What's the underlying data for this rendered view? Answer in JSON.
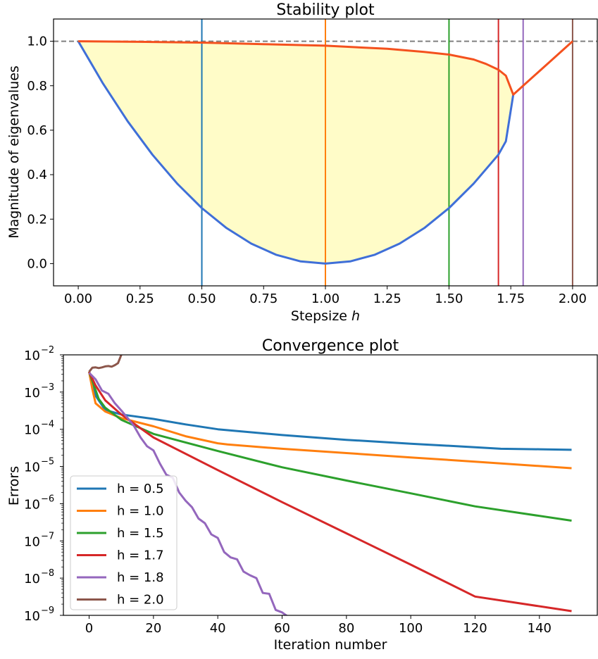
{
  "chart_data": [
    {
      "type": "line",
      "title": "Stability plot",
      "xlabel": "Stepsize",
      "xlabel_var": "h",
      "ylabel": "Magnitude of eigenvalues",
      "xlim": [
        -0.1,
        2.1
      ],
      "ylim": [
        -0.1,
        1.1
      ],
      "xticks": [
        0.0,
        0.25,
        0.5,
        0.75,
        1.0,
        1.25,
        1.5,
        1.75,
        2.0
      ],
      "xtick_labels": [
        "0.00",
        "0.25",
        "0.50",
        "0.75",
        "1.00",
        "1.25",
        "1.50",
        "1.75",
        "2.00"
      ],
      "yticks": [
        0.0,
        0.2,
        0.4,
        0.6,
        0.8,
        1.0
      ],
      "ytick_labels": [
        "0.0",
        "0.2",
        "0.4",
        "0.6",
        "0.8",
        "1.0"
      ],
      "reference_line": {
        "y": 1.0,
        "style": "dashed",
        "color": "#808080"
      },
      "fill_color": "#fffcc8",
      "series": [
        {
          "color": "#f4511e",
          "x": [
            0.0,
            0.25,
            0.5,
            0.75,
            1.0,
            1.25,
            1.4,
            1.5,
            1.6,
            1.65,
            1.7,
            1.73,
            1.76,
            1.8,
            1.9,
            2.0
          ],
          "y": [
            1.0,
            0.9975,
            0.994,
            0.987,
            0.98,
            0.966,
            0.952,
            0.94,
            0.918,
            0.898,
            0.872,
            0.845,
            0.76,
            0.8,
            0.9,
            1.0
          ]
        },
        {
          "color": "#3f6fd8",
          "x": [
            0.0,
            0.1,
            0.2,
            0.3,
            0.4,
            0.5,
            0.6,
            0.7,
            0.8,
            0.9,
            1.0,
            1.1,
            1.2,
            1.3,
            1.4,
            1.5,
            1.6,
            1.7,
            1.73,
            1.76
          ],
          "y": [
            1.0,
            0.81,
            0.64,
            0.49,
            0.36,
            0.25,
            0.16,
            0.09,
            0.04,
            0.01,
            0.0,
            0.01,
            0.04,
            0.09,
            0.16,
            0.25,
            0.36,
            0.49,
            0.55,
            0.76
          ]
        }
      ],
      "vlines": [
        {
          "x": 0.5,
          "color": "#1f77b4"
        },
        {
          "x": 1.0,
          "color": "#ff7f0e"
        },
        {
          "x": 1.5,
          "color": "#2ca02c"
        },
        {
          "x": 1.7,
          "color": "#d62728"
        },
        {
          "x": 1.8,
          "color": "#9467bd"
        },
        {
          "x": 2.0,
          "color": "#8c564b"
        }
      ]
    },
    {
      "type": "line",
      "title": "Convergence plot",
      "xlabel": "Iteration number",
      "ylabel": "Errors",
      "yscale": "log",
      "xlim": [
        -8,
        158
      ],
      "ylim_log10": [
        -9,
        -2
      ],
      "xticks": [
        0,
        20,
        40,
        60,
        80,
        100,
        120,
        140
      ],
      "xtick_labels": [
        "0",
        "20",
        "40",
        "60",
        "80",
        "100",
        "120",
        "140"
      ],
      "yticks_log10": [
        -9,
        -8,
        -7,
        -6,
        -5,
        -4,
        -3,
        -2
      ],
      "ytick_base": "10",
      "ytick_exponents": [
        "−9",
        "−8",
        "−7",
        "−6",
        "−5",
        "−4",
        "−3",
        "−2"
      ],
      "legend_position": "lower-left",
      "series": [
        {
          "name": "h = 0.5",
          "color": "#1f77b4",
          "x": [
            0,
            2,
            5,
            10,
            20,
            30,
            40,
            60,
            80,
            100,
            120,
            128,
            140,
            150
          ],
          "y": [
            0.0035,
            0.0008,
            0.00033,
            0.00025,
            0.00019,
            0.000135,
            0.0001,
            7e-05,
            5.2e-05,
            4.1e-05,
            3.3e-05,
            3e-05,
            2.9e-05,
            2.8e-05
          ]
        },
        {
          "name": "h = 1.0",
          "color": "#ff7f0e",
          "x": [
            0,
            1,
            2,
            5,
            10,
            20,
            30,
            40,
            43,
            60,
            80,
            100,
            120,
            150
          ],
          "y": [
            0.0035,
            0.0012,
            0.0005,
            0.0003,
            0.0002,
            0.00012,
            6.5e-05,
            4.2e-05,
            3.9e-05,
            3e-05,
            2.3e-05,
            1.75e-05,
            1.35e-05,
            9e-06
          ]
        },
        {
          "name": "h = 1.5",
          "color": "#2ca02c",
          "x": [
            0,
            1,
            3,
            5,
            10,
            20,
            40,
            60,
            80,
            100,
            120,
            150
          ],
          "y": [
            0.0035,
            0.002,
            0.00065,
            0.00038,
            0.00018,
            7.5e-05,
            2.6e-05,
            9.5e-06,
            4.2e-06,
            1.9e-06,
            8.5e-07,
            3.5e-07
          ]
        },
        {
          "name": "h = 1.7",
          "color": "#d62728",
          "x": [
            0,
            2,
            5,
            10,
            20,
            40,
            60,
            80,
            100,
            120,
            150
          ],
          "y": [
            0.0035,
            0.0015,
            0.0006,
            0.00025,
            6e-05,
            8e-06,
            1.1e-06,
            1.6e-07,
            2.3e-08,
            3.2e-09,
            1.3e-09
          ]
        },
        {
          "name": "h = 1.8",
          "color": "#9467bd",
          "x": [
            0,
            2,
            4,
            6,
            8,
            10,
            12,
            14,
            16,
            18,
            20,
            22,
            24,
            26,
            28,
            30,
            32,
            34,
            36,
            38,
            40,
            42,
            44,
            46,
            48,
            50,
            52,
            54,
            56,
            58,
            60,
            62,
            64,
            66,
            68
          ],
          "y": [
            0.0033,
            0.0022,
            0.0011,
            0.0009,
            0.0005,
            0.00032,
            0.0002,
            0.00012,
            6e-05,
            3.5e-05,
            2.7e-05,
            1.2e-05,
            6e-06,
            5e-06,
            2e-06,
            1.2e-06,
            8e-07,
            4e-07,
            3e-07,
            1.5e-07,
            1.2e-07,
            5e-08,
            3.6e-08,
            3.2e-08,
            1.5e-08,
            1.2e-08,
            1e-08,
            4e-09,
            3.8e-09,
            1.4e-09,
            1.2e-09,
            9e-10,
            5e-10,
            3.6e-10,
            2.5e-10
          ]
        },
        {
          "name": "h = 2.0",
          "color": "#8c564b",
          "x": [
            0,
            1,
            2,
            3,
            4,
            5,
            6,
            7,
            8,
            9,
            10,
            11
          ],
          "y": [
            0.0035,
            0.0045,
            0.0046,
            0.0044,
            0.0046,
            0.0049,
            0.005,
            0.0048,
            0.0053,
            0.006,
            0.01,
            0.02
          ]
        }
      ]
    }
  ]
}
